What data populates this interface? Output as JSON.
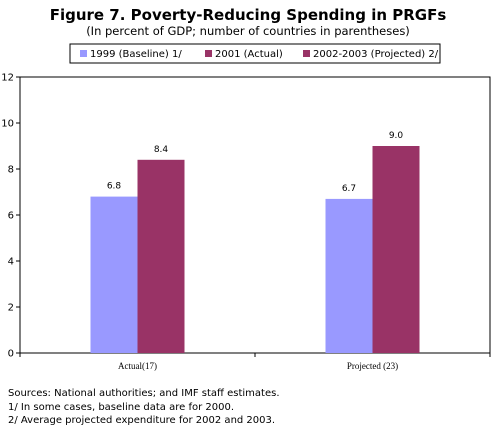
{
  "chart_data": {
    "type": "bar",
    "title": "Figure 7. Poverty-Reducing Spending in PRGFs",
    "subtitle": "(In percent of GDP; number of countries in parentheses)",
    "categories": [
      "Actual(17)",
      "Projected (23)"
    ],
    "series": [
      {
        "name": "1999 (Baseline) 1/",
        "color": "#9999ff",
        "values": [
          6.8,
          6.7
        ],
        "labels": [
          "6.8",
          "6.7"
        ]
      },
      {
        "name": "2001 (Actual)",
        "color": "#993366",
        "values": [
          8.4,
          null
        ],
        "labels": [
          "8.4",
          ""
        ]
      },
      {
        "name": "2002-2003 (Projected) 2/",
        "color": "#993366",
        "values": [
          null,
          9.0
        ],
        "labels": [
          "",
          "9.0"
        ]
      }
    ],
    "ylim": [
      0,
      12
    ],
    "yticks": [
      "0",
      "2",
      "4",
      "6",
      "8",
      "10",
      "12"
    ],
    "grid": false,
    "legend_position": "top"
  },
  "notes": [
    "Sources: National authorities; and IMF staff estimates.",
    "1/ In some cases, baseline data are for 2000.",
    "2/ Average projected expenditure for 2002 and 2003."
  ]
}
